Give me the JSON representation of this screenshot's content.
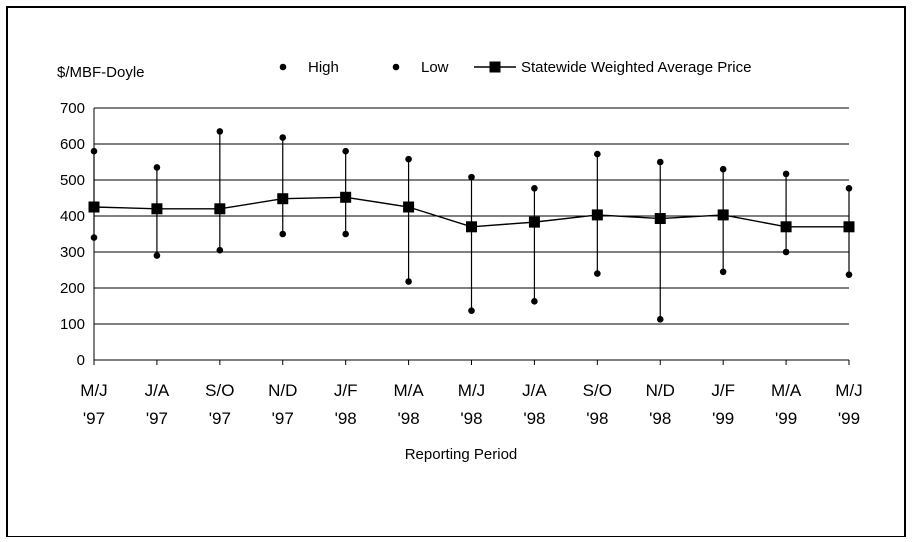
{
  "chart_data": {
    "type": "line",
    "ylabel": "$/MBF-Doyle",
    "xlabel": "Reporting Period",
    "ylim": [
      0,
      700
    ],
    "yticks": [
      "0",
      "100",
      "200",
      "300",
      "400",
      "500",
      "600",
      "700"
    ],
    "grid": true,
    "legend_position": "top",
    "categories": [
      [
        "M/J",
        "'97"
      ],
      [
        "J/A",
        "'97"
      ],
      [
        "S/O",
        "'97"
      ],
      [
        "N/D",
        "'97"
      ],
      [
        "J/F",
        "'98"
      ],
      [
        "M/A",
        "'98"
      ],
      [
        "M/J",
        "'98"
      ],
      [
        "J/A",
        "'98"
      ],
      [
        "S/O",
        "'98"
      ],
      [
        "N/D",
        "'98"
      ],
      [
        "J/F",
        "'99"
      ],
      [
        "M/A",
        "'99"
      ],
      [
        "M/J",
        "'99"
      ]
    ],
    "series": [
      {
        "name": "High",
        "marker": "dot",
        "values": [
          580,
          535,
          635,
          618,
          580,
          558,
          508,
          477,
          572,
          550,
          530,
          517,
          477
        ]
      },
      {
        "name": "Low",
        "marker": "dot",
        "values": [
          340,
          290,
          305,
          350,
          350,
          218,
          137,
          163,
          240,
          113,
          245,
          300,
          237
        ]
      },
      {
        "name": "Statewide Weighted Average Price",
        "marker": "square",
        "values": [
          425,
          420,
          420,
          448,
          452,
          425,
          370,
          383,
          403,
          393,
          403,
          370,
          370
        ]
      }
    ],
    "colors": {
      "line": "#000000",
      "grid": "#000000",
      "background": "#ffffff"
    }
  }
}
